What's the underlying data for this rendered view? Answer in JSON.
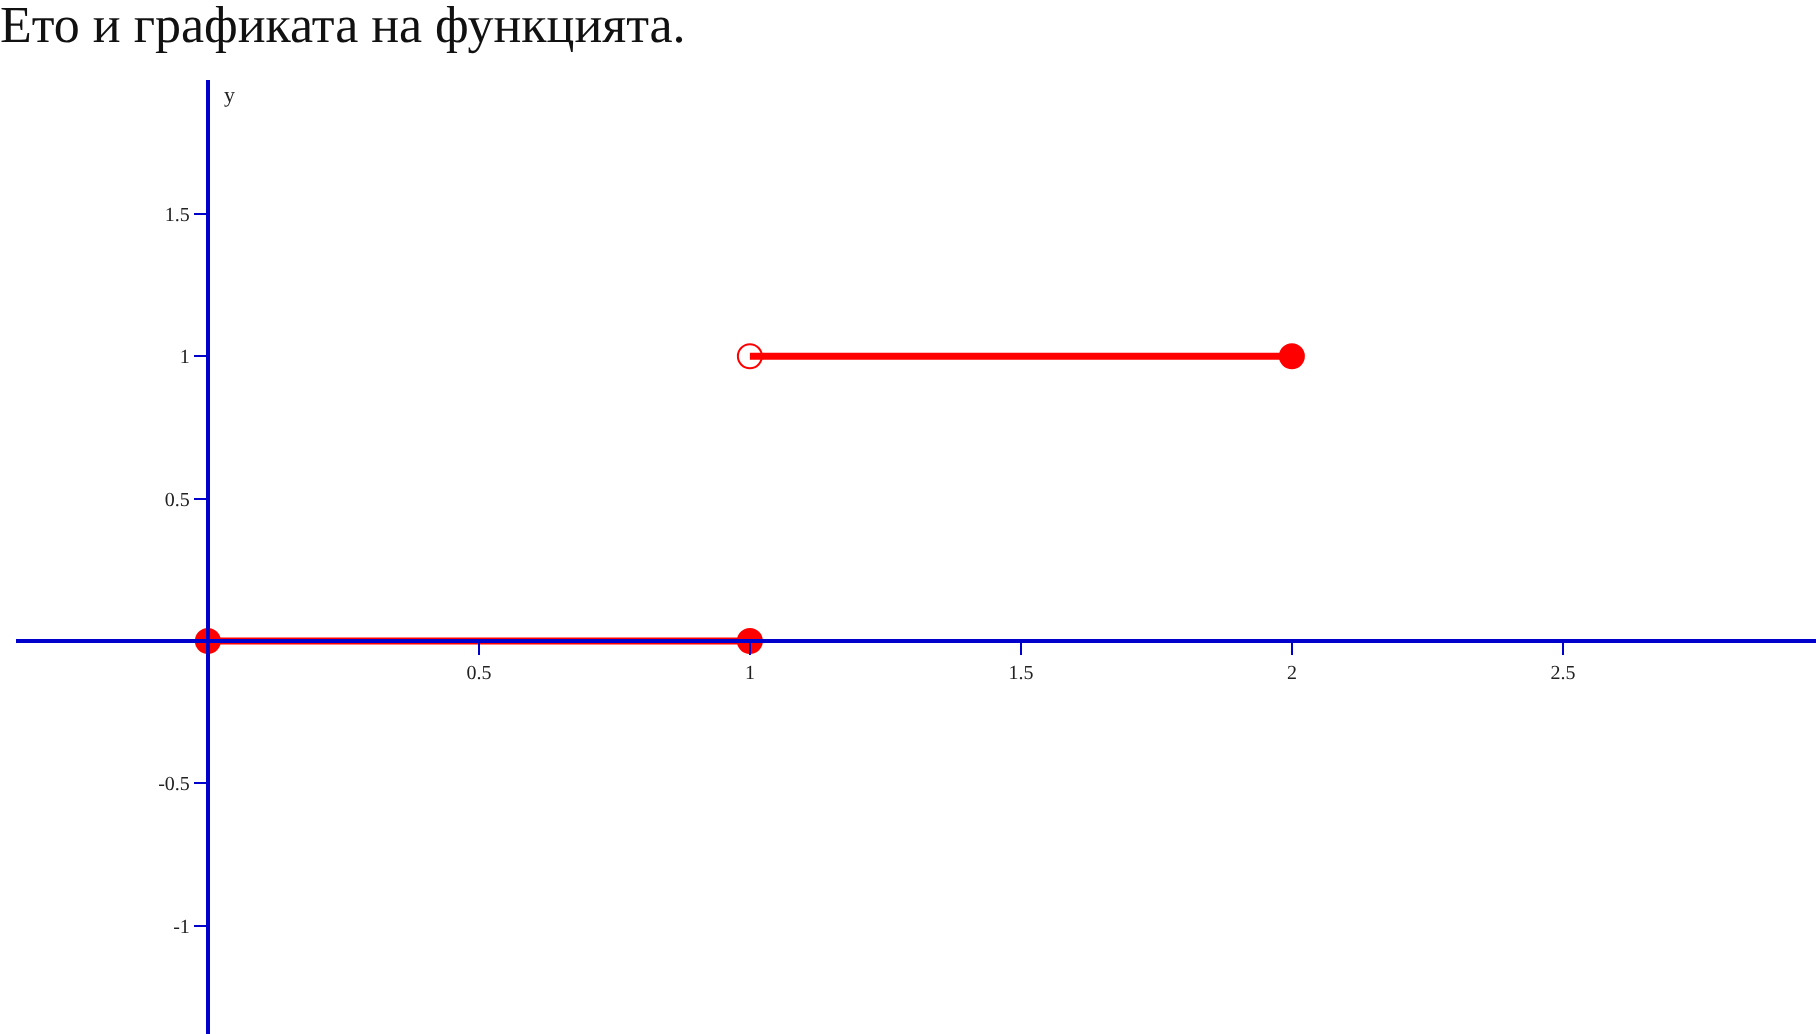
{
  "chart_data": {
    "type": "line",
    "title": "Ето и графиката на функцията.",
    "ylabel": "y",
    "series": [
      {
        "color": "#ff0000",
        "x": [
          0,
          1
        ],
        "values": [
          0,
          0
        ],
        "marker": "circle"
      },
      {
        "color": "#ff0000",
        "x": [
          1,
          2
        ],
        "values": [
          1,
          1
        ],
        "marker": "none"
      },
      {
        "type": "scatter",
        "color": "#ff0000",
        "x": [
          2
        ],
        "values": [
          1
        ],
        "marker": "circle"
      },
      {
        "type": "scatter",
        "color": "#ff0000",
        "x": [
          1
        ],
        "values": [
          1
        ],
        "marker": "circle-open"
      }
    ],
    "xlim": [
      -0.354,
      2.967
    ],
    "xticks": [
      0.5,
      1,
      1.5,
      2,
      2.5
    ],
    "ylim": [
      -1.38,
      1.97
    ],
    "yticks": [
      -1,
      -0.5,
      0.5,
      1,
      1.5
    ],
    "line_style": "solid"
  }
}
